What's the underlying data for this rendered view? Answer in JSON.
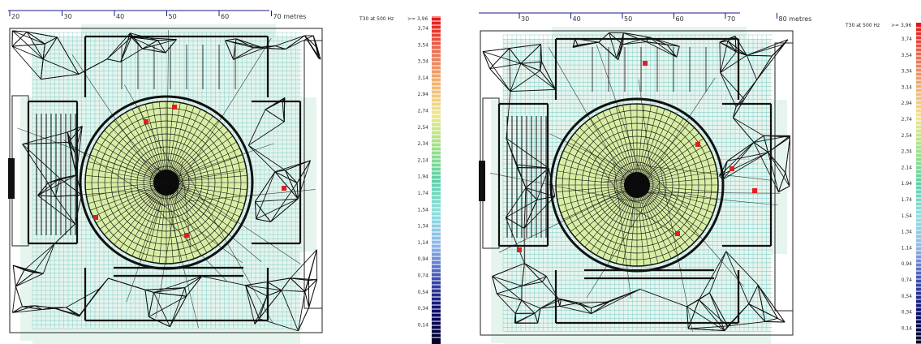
{
  "panels": [
    {
      "name": "left",
      "ruler": {
        "ticks": [
          "20",
          "30",
          "40",
          "50",
          "60",
          "70 metres"
        ]
      },
      "legend": {
        "title": "T30 at 500 Hz",
        "max_label": ">= 3,96",
        "labels": [
          "3,74",
          "3,54",
          "3,34",
          "3,14",
          "2,94",
          "2,74",
          "2,54",
          "2,34",
          "2,14",
          "1,94",
          "1,74",
          "1,54",
          "1,34",
          "1,14",
          "0,94",
          "0,74",
          "0,54",
          "0,34",
          "0,14"
        ]
      }
    },
    {
      "name": "right",
      "ruler": {
        "ticks": [
          "30",
          "40",
          "50",
          "60",
          "70",
          "80 metres"
        ]
      },
      "legend": {
        "title": "T30 at 500 Hz",
        "max_label": ">= 3,96",
        "labels": [
          "3,74",
          "3,54",
          "3,34",
          "3,14",
          "2,94",
          "2,74",
          "2,54",
          "2,34",
          "2,14",
          "1,94",
          "1,74",
          "1,54",
          "1,34",
          "1,14",
          "0,94",
          "0,74",
          "0,54",
          "0,34",
          "0,14"
        ]
      }
    }
  ],
  "colors": {
    "ruler": "#1a1a8c",
    "mesh": "#000000",
    "cyan_lines": "#1aa6a0",
    "dome_fill": "#d8eea4",
    "hotspot": "#e02020"
  }
}
